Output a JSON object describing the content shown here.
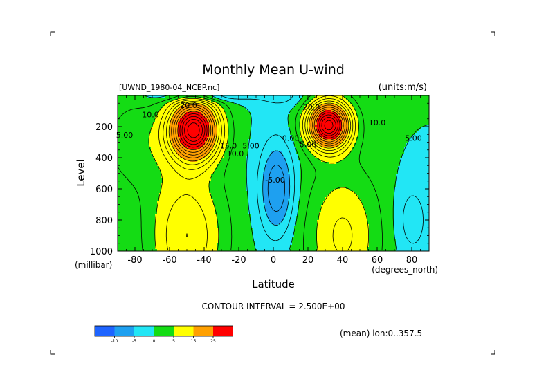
{
  "chart_data": {
    "type": "heatmap",
    "title": "Monthly Mean U-wind",
    "dataset_label": "[UWND_1980-04_NCEP.nc]",
    "units_label": "(units:m/s)",
    "xlabel": "Latitude",
    "x_unit_label": "(degrees_north)",
    "ylabel": "Level",
    "y_unit_label": "(millibar)",
    "xlim": [
      -90,
      90
    ],
    "ylim": [
      1000,
      0
    ],
    "x_ticks": [
      -80,
      -60,
      -40,
      -20,
      0,
      20,
      40,
      60,
      80
    ],
    "y_ticks": [
      200,
      400,
      600,
      800,
      1000
    ],
    "contour_interval_text": "CONTOUR INTERVAL = 2.500E+00",
    "mean_text": "(mean) lon:0..357.5",
    "colorbar": {
      "colors": [
        "#1e64ff",
        "#1ea0f0",
        "#22e6f5",
        "#14dc14",
        "#ffff00",
        "#ffa000",
        "#ff0000"
      ],
      "boundaries": [
        -10,
        -5,
        0,
        5,
        15,
        25
      ],
      "labels": [
        "-10",
        "-5",
        "0",
        "5",
        "15",
        "25"
      ]
    },
    "contour_labels": [
      {
        "text": "20.0",
        "lat": -49,
        "p": 80
      },
      {
        "text": "10.0",
        "lat": -71,
        "p": 140
      },
      {
        "text": "5.00",
        "lat": -86,
        "p": 270
      },
      {
        "text": "15.0",
        "lat": -26,
        "p": 340
      },
      {
        "text": "10.0",
        "lat": -22,
        "p": 390
      },
      {
        "text": "5.00",
        "lat": -13,
        "p": 340
      },
      {
        "text": "20.0",
        "lat": 22,
        "p": 90
      },
      {
        "text": "10.0",
        "lat": 60,
        "p": 190
      },
      {
        "text": "5.00",
        "lat": 81,
        "p": 290
      },
      {
        "text": "0.00",
        "lat": 10,
        "p": 290
      },
      {
        "text": "5.00",
        "lat": 20,
        "p": 330
      },
      {
        "text": "-5.00",
        "lat": 1,
        "p": 560
      }
    ]
  }
}
